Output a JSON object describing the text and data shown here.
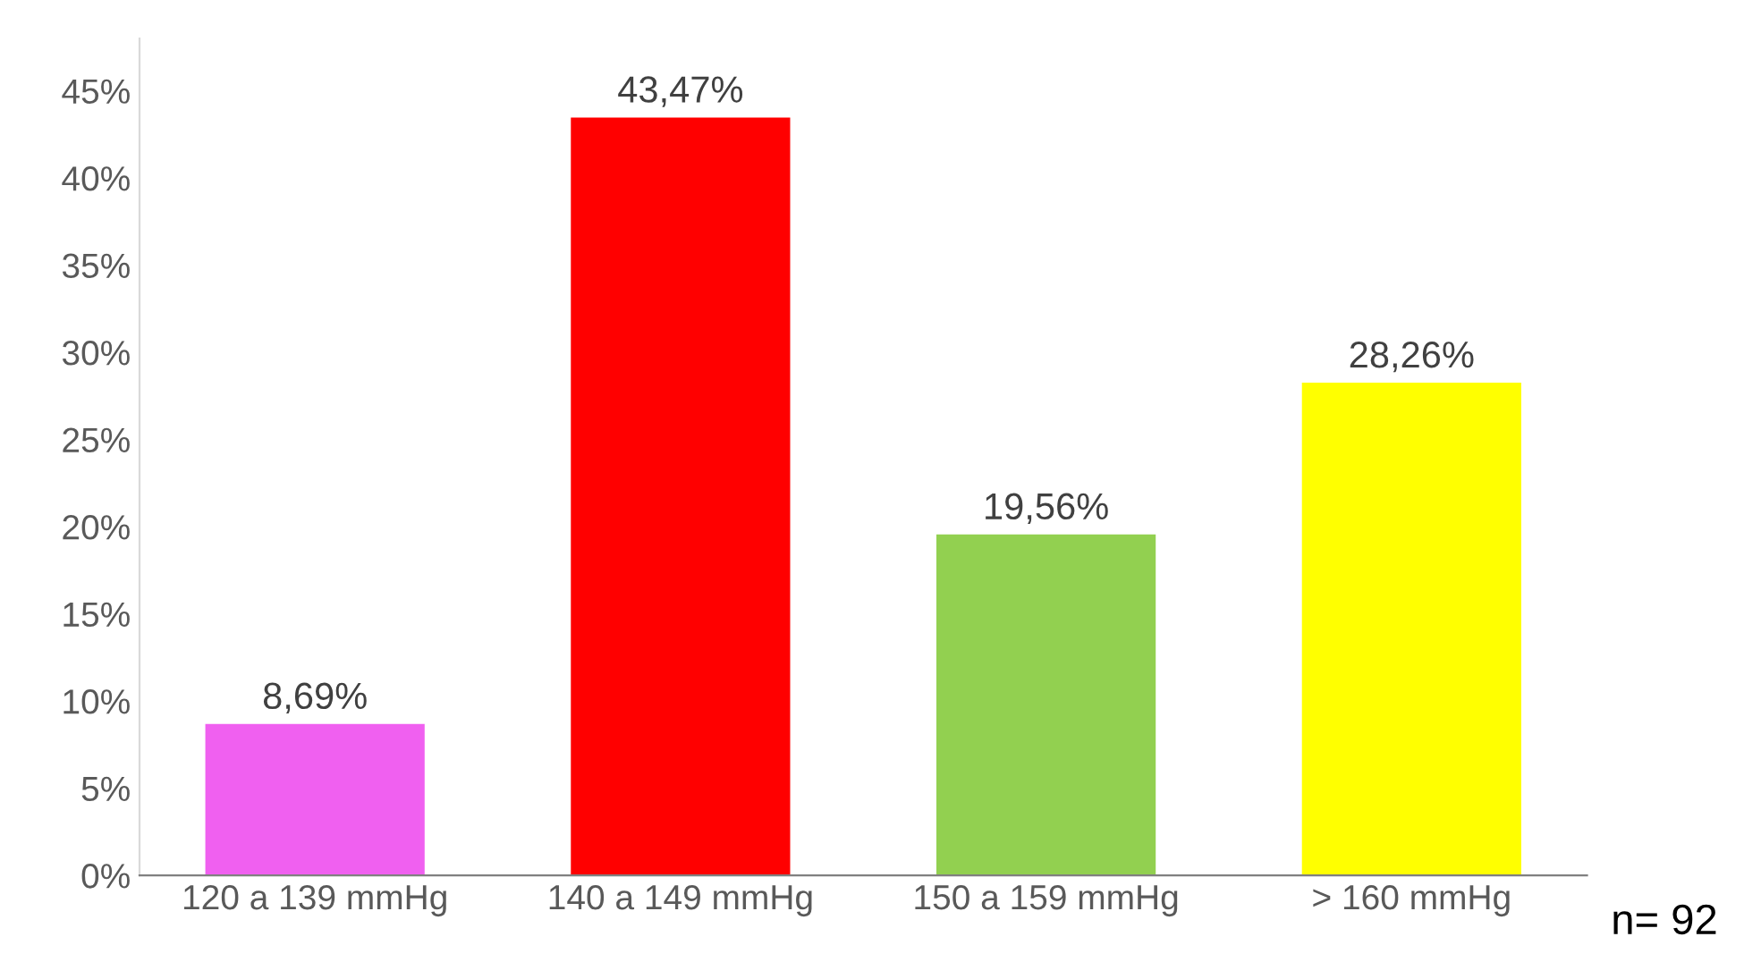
{
  "chart_data": {
    "type": "bar",
    "categories": [
      "120 a 139 mmHg",
      "140 a 149 mmHg",
      "150 a 159 mmHg",
      "> 160 mmHg"
    ],
    "values": [
      8.69,
      43.47,
      19.56,
      28.26
    ],
    "colors": [
      "#f060f0",
      "#ff0000",
      "#92d050",
      "#ffff00"
    ],
    "value_labels": [
      "8,69%",
      "43,47%",
      "19,56%",
      "28,26%"
    ],
    "ylim": [
      0,
      48
    ],
    "yticks": [
      {
        "value": 0,
        "label": "0%"
      },
      {
        "value": 5,
        "label": "5%"
      },
      {
        "value": 10,
        "label": "10%"
      },
      {
        "value": 15,
        "label": "15%"
      },
      {
        "value": 20,
        "label": "20%"
      },
      {
        "value": 25,
        "label": "25%"
      },
      {
        "value": 30,
        "label": "30%"
      },
      {
        "value": 35,
        "label": "35%"
      },
      {
        "value": 40,
        "label": "40%"
      },
      {
        "value": 45,
        "label": "45%"
      }
    ],
    "annotations": [
      "n= 92"
    ],
    "grid": false,
    "legend": false
  }
}
